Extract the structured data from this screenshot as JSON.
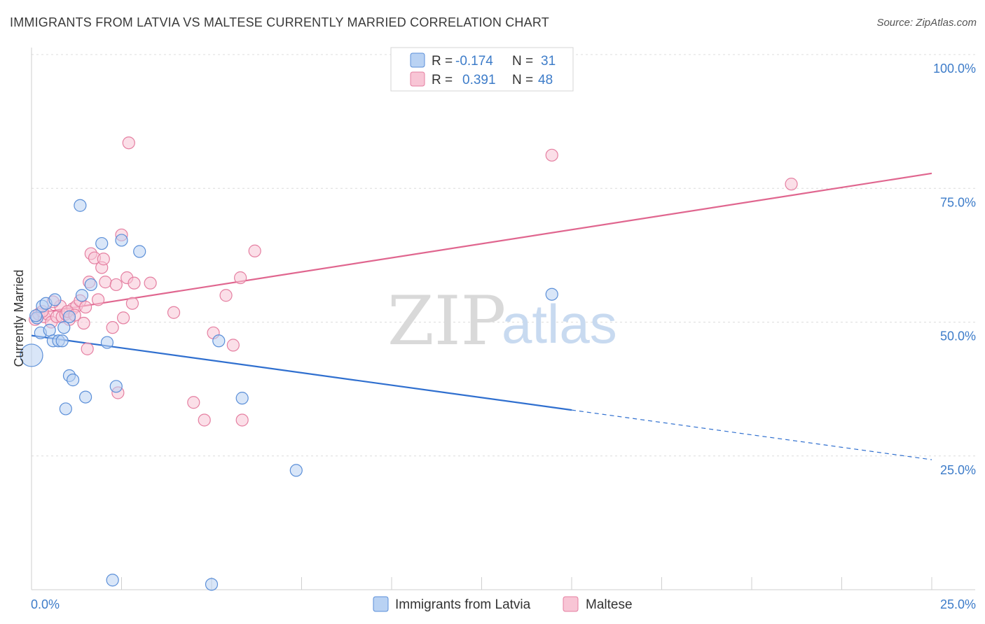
{
  "title": "IMMIGRANTS FROM LATVIA VS MALTESE CURRENTLY MARRIED CORRELATION CHART",
  "source": "Source: ZipAtlas.com",
  "watermark": {
    "zip": "ZIP",
    "atlas": "atlas"
  },
  "colors": {
    "blue": "#5b8fd8",
    "blue_fill": "#b9d2f3",
    "blue_line": "#2f6fcf",
    "pink": "#e57fa1",
    "pink_fill": "#f8c5d5",
    "pink_line": "#e0668f",
    "grid": "#dcdcdc",
    "axis_text": "#3d7cc9"
  },
  "legend": {
    "rows": [
      {
        "r_label": "R =",
        "r_value": "-0.174",
        "n_label": "N =",
        "n_value": "31"
      },
      {
        "r_label": "R =",
        "r_value": "0.391",
        "n_label": "N =",
        "n_value": "48"
      }
    ]
  },
  "chart_data": {
    "type": "scatter",
    "title": "IMMIGRANTS FROM LATVIA VS MALTESE CURRENTLY MARRIED CORRELATION CHART",
    "xlabel": "",
    "ylabel": "Currently Married",
    "xlim": [
      0,
      25
    ],
    "ylim": [
      0,
      100
    ],
    "x_ticks": [
      "0.0%",
      "25.0%"
    ],
    "y_ticks": [
      "25.0%",
      "50.0%",
      "75.0%",
      "100.0%"
    ],
    "y_tick_values": [
      25,
      50,
      75,
      100
    ],
    "grid": true,
    "legend_position": "top-center",
    "series": [
      {
        "name": "Immigrants from Latvia",
        "color": "blue",
        "points": [
          [
            0.0,
            43.8,
            3
          ],
          [
            0.15,
            50.8,
            1
          ],
          [
            0.25,
            48.0,
            1
          ],
          [
            0.3,
            53.0,
            1
          ],
          [
            0.4,
            53.5,
            1
          ],
          [
            0.5,
            48.5,
            1
          ],
          [
            0.6,
            46.5,
            1
          ],
          [
            0.65,
            54.2,
            1
          ],
          [
            0.75,
            46.5,
            1
          ],
          [
            0.85,
            46.5,
            1
          ],
          [
            0.9,
            49.0,
            1
          ],
          [
            0.95,
            33.8,
            1
          ],
          [
            1.05,
            40.0,
            1
          ],
          [
            1.05,
            51.0,
            1
          ],
          [
            1.15,
            39.2,
            1
          ],
          [
            1.35,
            71.8,
            1
          ],
          [
            1.4,
            55.0,
            1
          ],
          [
            1.5,
            36.0,
            1
          ],
          [
            1.65,
            57.0,
            1
          ],
          [
            1.95,
            64.7,
            1
          ],
          [
            2.1,
            46.2,
            1
          ],
          [
            2.25,
            1.8,
            1
          ],
          [
            2.35,
            38.0,
            1
          ],
          [
            2.5,
            65.3,
            1
          ],
          [
            3.0,
            63.2,
            1
          ],
          [
            5.0,
            1.0,
            1
          ],
          [
            5.2,
            46.5,
            1
          ],
          [
            5.85,
            35.8,
            1
          ],
          [
            7.35,
            22.3,
            1
          ],
          [
            14.45,
            55.2,
            1
          ],
          [
            0.12,
            51.2,
            1
          ]
        ]
      },
      {
        "name": "Maltese",
        "color": "pink",
        "points": [
          [
            0.1,
            50.5,
            1
          ],
          [
            0.2,
            51.5,
            1
          ],
          [
            0.35,
            51.0,
            1
          ],
          [
            0.45,
            51.5,
            1
          ],
          [
            0.55,
            50.0,
            1
          ],
          [
            0.7,
            51.0,
            1
          ],
          [
            0.8,
            53.0,
            1
          ],
          [
            0.85,
            51.0,
            1
          ],
          [
            0.95,
            51.5,
            1
          ],
          [
            1.05,
            50.5,
            1
          ],
          [
            1.15,
            52.5,
            1
          ],
          [
            1.25,
            53.0,
            1
          ],
          [
            1.35,
            54.0,
            1
          ],
          [
            1.45,
            49.8,
            1
          ],
          [
            1.5,
            52.8,
            1
          ],
          [
            1.55,
            45.0,
            1
          ],
          [
            1.6,
            57.5,
            1
          ],
          [
            1.65,
            62.8,
            1
          ],
          [
            1.75,
            62.0,
            1
          ],
          [
            1.85,
            54.2,
            1
          ],
          [
            1.95,
            60.2,
            1
          ],
          [
            2.0,
            61.8,
            1
          ],
          [
            2.05,
            57.5,
            1
          ],
          [
            2.25,
            49.0,
            1
          ],
          [
            2.35,
            57.0,
            1
          ],
          [
            2.4,
            36.8,
            1
          ],
          [
            2.5,
            66.3,
            1
          ],
          [
            2.55,
            50.8,
            1
          ],
          [
            2.65,
            58.3,
            1
          ],
          [
            2.7,
            83.5,
            1
          ],
          [
            2.8,
            53.5,
            1
          ],
          [
            2.85,
            57.3,
            1
          ],
          [
            3.3,
            57.3,
            1
          ],
          [
            3.95,
            51.8,
            1
          ],
          [
            4.5,
            35.0,
            1
          ],
          [
            4.8,
            31.7,
            1
          ],
          [
            5.05,
            48.0,
            1
          ],
          [
            5.4,
            55.0,
            1
          ],
          [
            5.6,
            45.7,
            1
          ],
          [
            5.8,
            58.3,
            1
          ],
          [
            5.85,
            31.7,
            1
          ],
          [
            6.2,
            63.3,
            1
          ],
          [
            14.45,
            81.2,
            1
          ],
          [
            21.1,
            75.8,
            1
          ],
          [
            0.6,
            53.8,
            1
          ],
          [
            1.0,
            52.0,
            1
          ],
          [
            0.3,
            52.0,
            1
          ],
          [
            1.2,
            51.3,
            1
          ]
        ]
      }
    ],
    "trendlines": [
      {
        "series": "Immigrants from Latvia",
        "x_start": 0,
        "y_start": 47.5,
        "x_solid_end": 15.0,
        "x_end": 25,
        "y_end": 24.3
      },
      {
        "series": "Maltese",
        "x_start": 0,
        "y_start": 51.5,
        "x_end": 25,
        "y_end": 77.8
      }
    ]
  }
}
